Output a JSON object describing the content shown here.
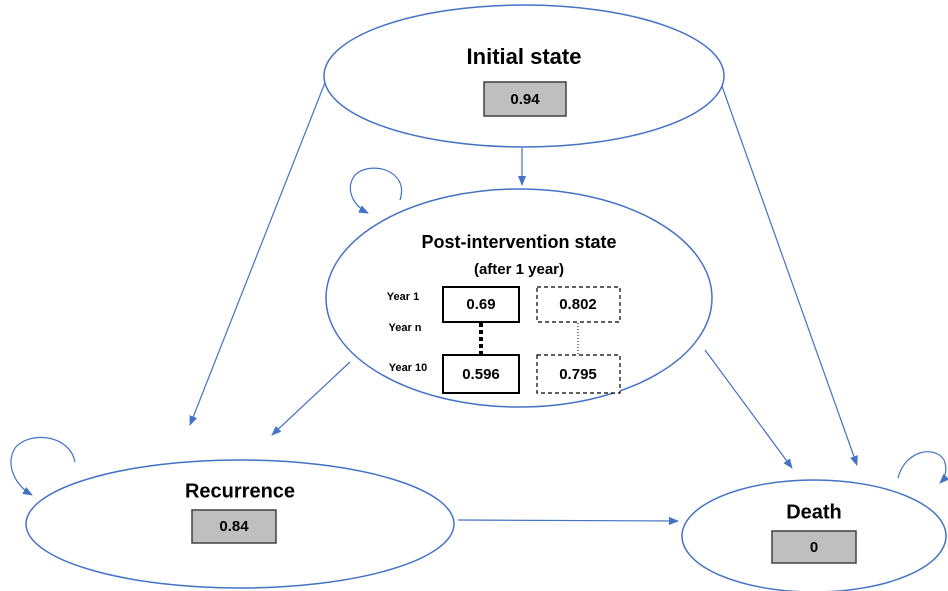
{
  "nodes": [
    {
      "label": "Initial state",
      "value": 0.94
    },
    {
      "label": "Post-intervention state",
      "sublabel": "(after 1 year)",
      "rows": [
        {
          "label": "Year 1",
          "values": [
            0.69,
            0.802
          ]
        },
        {
          "label": "Year n"
        },
        {
          "label": "Year 10",
          "values": [
            0.596,
            0.795
          ]
        }
      ]
    },
    {
      "label": "Recurrence",
      "value": 0.84
    },
    {
      "label": "Death",
      "value": 0
    }
  ]
}
